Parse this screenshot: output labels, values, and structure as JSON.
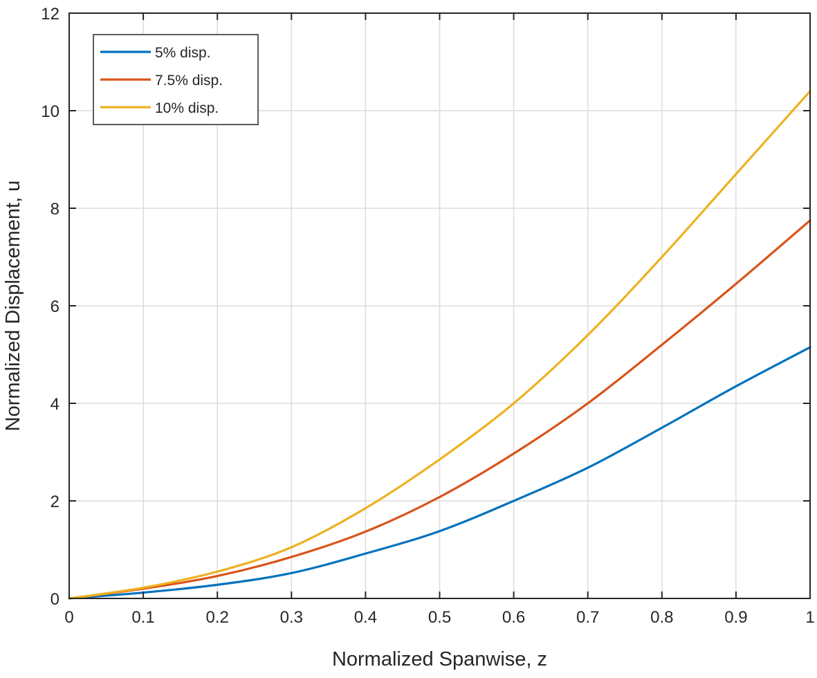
{
  "chart_data": {
    "type": "line",
    "title": "",
    "xlabel": "Normalized Spanwise, z",
    "ylabel": "Normalized Displacement, u",
    "xlim": [
      0,
      1
    ],
    "ylim": [
      0,
      12
    ],
    "xticks": [
      0,
      0.1,
      0.2,
      0.3,
      0.4,
      0.5,
      0.6,
      0.7,
      0.8,
      0.9,
      1
    ],
    "xtick_labels": [
      "0",
      "0.1",
      "0.2",
      "0.3",
      "0.4",
      "0.5",
      "0.6",
      "0.7",
      "0.8",
      "0.9",
      "1"
    ],
    "yticks": [
      0,
      2,
      4,
      6,
      8,
      10,
      12
    ],
    "ytick_labels": [
      "0",
      "2",
      "4",
      "6",
      "8",
      "10",
      "12"
    ],
    "grid": true,
    "legend_position": "top-left",
    "x": [
      0,
      0.1,
      0.2,
      0.3,
      0.4,
      0.5,
      0.6,
      0.7,
      0.8,
      0.9,
      1.0
    ],
    "series": [
      {
        "name": "5% disp.",
        "color": "#0072BD",
        "values": [
          0,
          0.12,
          0.28,
          0.52,
          0.92,
          1.38,
          2.0,
          2.68,
          3.5,
          4.35,
          5.15
        ]
      },
      {
        "name": "7.5% disp.",
        "color": "#D95319",
        "values": [
          0,
          0.2,
          0.46,
          0.85,
          1.37,
          2.08,
          2.97,
          4.0,
          5.2,
          6.45,
          7.75
        ]
      },
      {
        "name": "10% disp.",
        "color": "#EDB120",
        "values": [
          0,
          0.22,
          0.55,
          1.05,
          1.85,
          2.85,
          4.0,
          5.4,
          7.0,
          8.7,
          10.4
        ]
      }
    ]
  }
}
